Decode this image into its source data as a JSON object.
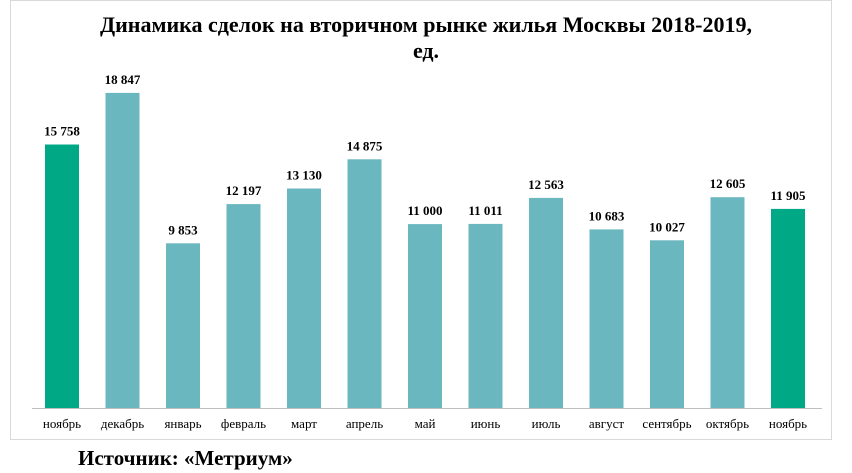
{
  "chart_data": {
    "type": "bar",
    "title_line1": "Динамика сделок на вторичном рынке жилья Москвы 2018-2019,",
    "title_line2": "ед.",
    "categories": [
      "ноябрь",
      "декабрь",
      "январь",
      "февраль",
      "март",
      "апрель",
      "май",
      "июнь",
      "июль",
      "август",
      "сентябрь",
      "октябрь",
      "ноябрь"
    ],
    "values": [
      15758,
      18847,
      9853,
      12197,
      13130,
      14875,
      11000,
      11011,
      12563,
      10683,
      10027,
      12605,
      11905
    ],
    "value_labels": [
      "15 758",
      "18 847",
      "9 853",
      "12 197",
      "13 130",
      "14 875",
      "11 000",
      "11 011",
      "12 563",
      "10 683",
      "10 027",
      "12 605",
      "11 905"
    ],
    "highlighted": [
      true,
      false,
      false,
      false,
      false,
      false,
      false,
      false,
      false,
      false,
      false,
      false,
      true
    ],
    "ylim": [
      0,
      20000
    ],
    "grid": false,
    "legend": "none",
    "colors": {
      "highlight": "#00A886",
      "default": "#6BB7BF",
      "axis": "#bfbfbf"
    }
  },
  "source": "Источник: «Метриум»"
}
